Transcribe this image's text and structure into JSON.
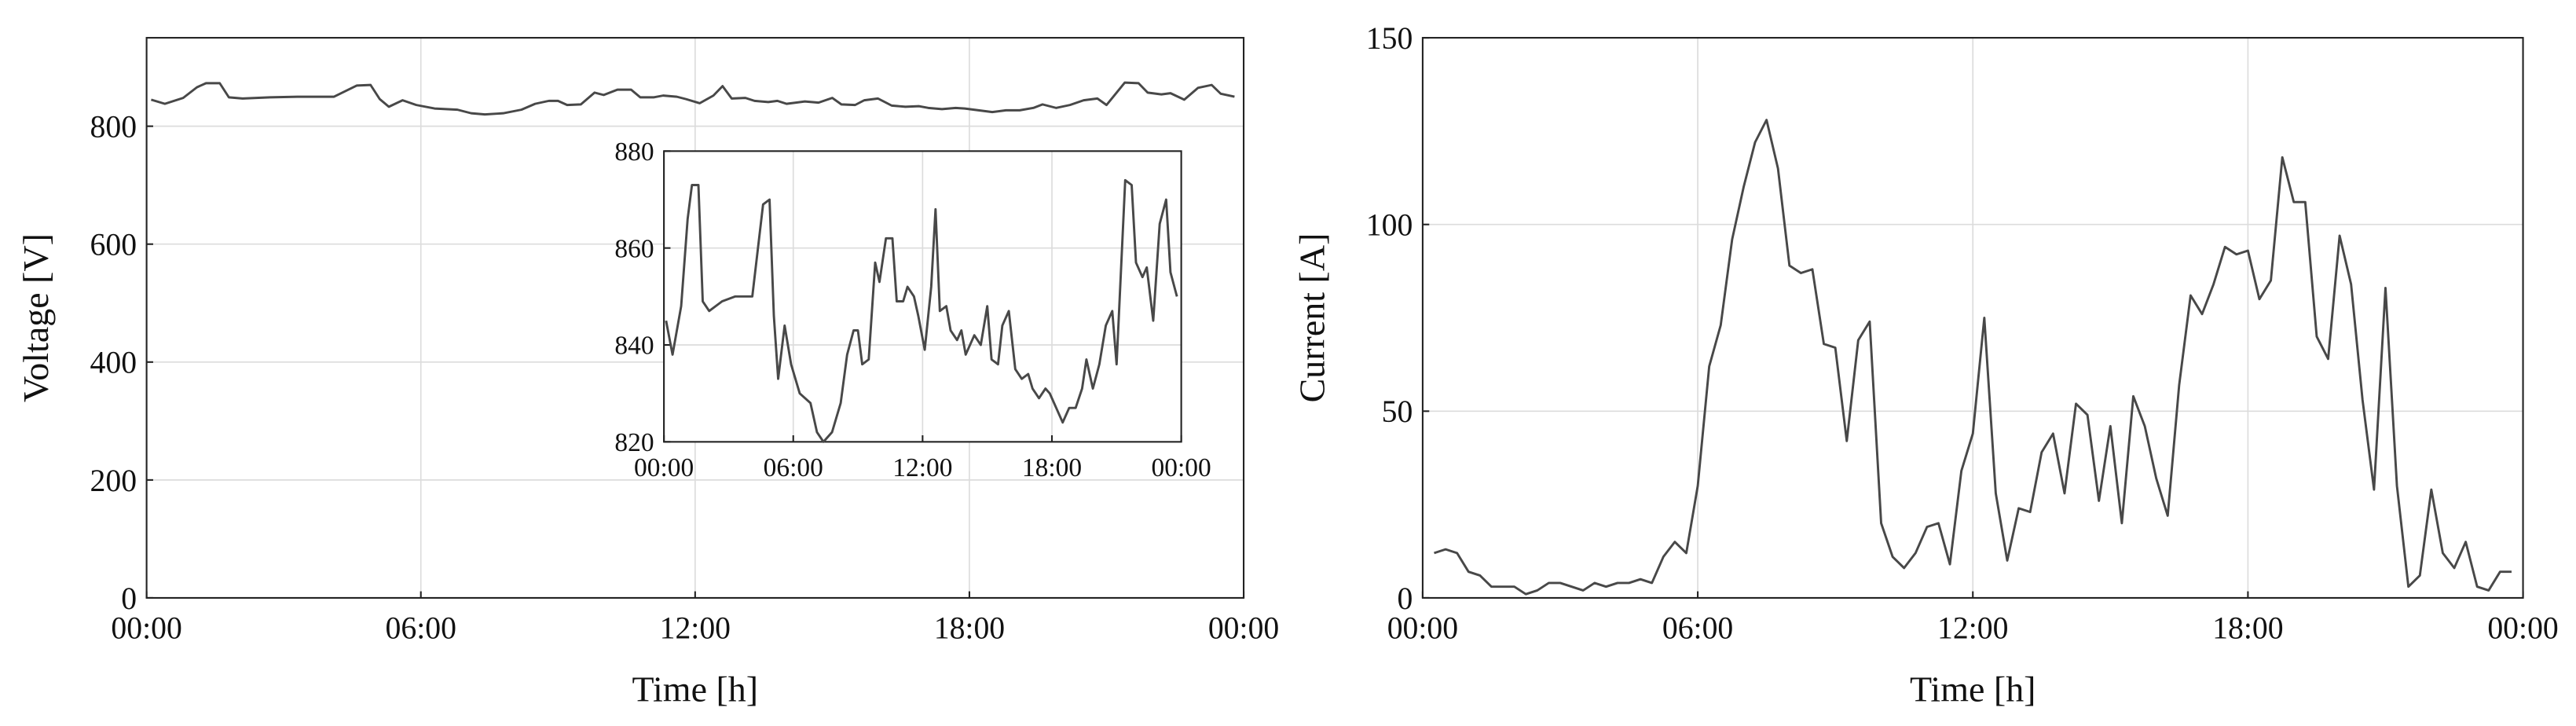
{
  "chart_data": [
    {
      "type": "line",
      "xlabel": "Time [h]",
      "ylabel": "Voltage [V]",
      "x": [
        0.1,
        0.4,
        0.8,
        1.1,
        1.3,
        1.6,
        1.8,
        2.1,
        2.7,
        3.3,
        4.1,
        4.6,
        4.9,
        5.1,
        5.3,
        5.6,
        5.9,
        6.3,
        6.8,
        7.1,
        7.4,
        7.8,
        8.2,
        8.5,
        8.8,
        9.0,
        9.2,
        9.5,
        9.8,
        10.0,
        10.3,
        10.6,
        10.8,
        11.1,
        11.3,
        11.6,
        11.8,
        12.1,
        12.4,
        12.6,
        12.8,
        13.1,
        13.3,
        13.6,
        13.8,
        14.0,
        14.4,
        14.7,
        15.0,
        15.2,
        15.5,
        15.7,
        16.0,
        16.3,
        16.6,
        16.9,
        17.1,
        17.4,
        17.7,
        17.9,
        18.2,
        18.5,
        18.8,
        19.1,
        19.4,
        19.6,
        19.9,
        20.2,
        20.5,
        20.8,
        21.0,
        21.4,
        21.7,
        21.9,
        22.2,
        22.4,
        22.7,
        23.0,
        23.3,
        23.5,
        23.8
      ],
      "series": [
        {
          "color": "#484848",
          "values": [
            845,
            838,
            848,
            866,
            873,
            873,
            849,
            847,
            849,
            850,
            850,
            869,
            870,
            846,
            833,
            844,
            836,
            830,
            828,
            822,
            820,
            822,
            828,
            838,
            843,
            843,
            836,
            837,
            857,
            853,
            862,
            862,
            849,
            849,
            852,
            850,
            846,
            839,
            852,
            868,
            847,
            848,
            843,
            841,
            843,
            838,
            842,
            840,
            848,
            837,
            836,
            844,
            847,
            835,
            833,
            834,
            831,
            829,
            831,
            830,
            827,
            824,
            827,
            827,
            831,
            837,
            831,
            836,
            844,
            847,
            836,
            874,
            873,
            857,
            854,
            856,
            845,
            865,
            870,
            855,
            850
          ]
        }
      ],
      "xlim": [
        0,
        24
      ],
      "xticks": [
        {
          "value": 0,
          "label": "00:00"
        },
        {
          "value": 6,
          "label": "06:00"
        },
        {
          "value": 12,
          "label": "12:00"
        },
        {
          "value": 18,
          "label": "18:00"
        },
        {
          "value": 24,
          "label": "00:00"
        }
      ],
      "ylim": [
        0,
        950
      ],
      "yticks": [
        0,
        200,
        400,
        600,
        800
      ],
      "grid": true,
      "inset": {
        "xlim": [
          0,
          24
        ],
        "xticks": [
          {
            "value": 0,
            "label": "00:00"
          },
          {
            "value": 6,
            "label": "06:00"
          },
          {
            "value": 12,
            "label": "12:00"
          },
          {
            "value": 18,
            "label": "18:00"
          },
          {
            "value": 24,
            "label": "00:00"
          }
        ],
        "ylim": [
          820,
          880
        ],
        "yticks": [
          820,
          840,
          860,
          880
        ],
        "grid": true
      }
    },
    {
      "type": "line",
      "xlabel": "Time [h]",
      "ylabel": "Current [A]",
      "x": [
        0.25,
        0.5,
        0.75,
        1,
        1.25,
        1.5,
        1.75,
        2,
        2.25,
        2.5,
        2.75,
        3,
        3.25,
        3.5,
        3.75,
        4,
        4.25,
        4.5,
        4.75,
        5,
        5.25,
        5.5,
        5.75,
        6,
        6.25,
        6.5,
        6.75,
        7,
        7.25,
        7.5,
        7.75,
        8,
        8.25,
        8.5,
        8.75,
        9,
        9.25,
        9.5,
        9.75,
        10,
        10.25,
        10.5,
        10.75,
        11,
        11.25,
        11.5,
        11.75,
        12,
        12.25,
        12.5,
        12.75,
        13,
        13.25,
        13.5,
        13.75,
        14,
        14.25,
        14.5,
        14.75,
        15,
        15.25,
        15.5,
        15.75,
        16,
        16.25,
        16.5,
        16.75,
        17,
        17.25,
        17.5,
        17.75,
        18,
        18.25,
        18.5,
        18.75,
        19,
        19.25,
        19.5,
        19.75,
        20,
        20.25,
        20.5,
        20.75,
        21,
        21.25,
        21.5,
        21.75,
        22,
        22.25,
        22.5,
        22.75,
        23,
        23.25,
        23.5,
        23.75
      ],
      "series": [
        {
          "color": "#484848",
          "values": [
            12,
            13,
            12,
            7,
            6,
            3,
            3,
            3,
            1,
            2,
            4,
            4,
            3,
            2,
            4,
            3,
            4,
            4,
            5,
            4,
            11,
            15,
            12,
            30,
            62,
            73,
            96,
            110,
            122,
            128,
            115,
            89,
            87,
            88,
            68,
            67,
            42,
            69,
            74,
            20,
            11,
            8,
            12,
            19,
            20,
            9,
            34,
            44,
            75,
            28,
            10,
            24,
            23,
            39,
            44,
            28,
            52,
            49,
            26,
            46,
            20,
            54,
            46,
            32,
            22,
            57,
            81,
            76,
            84,
            94,
            92,
            93,
            80,
            85,
            118,
            106,
            106,
            70,
            64,
            97,
            84,
            53,
            29,
            83,
            30,
            3,
            6,
            29,
            12,
            8,
            15,
            3,
            2,
            7,
            7
          ]
        }
      ],
      "xlim": [
        0,
        24
      ],
      "xticks": [
        {
          "value": 0,
          "label": "00:00"
        },
        {
          "value": 6,
          "label": "06:00"
        },
        {
          "value": 12,
          "label": "12:00"
        },
        {
          "value": 18,
          "label": "18:00"
        },
        {
          "value": 24,
          "label": "00:00"
        }
      ],
      "ylim": [
        0,
        150
      ],
      "yticks": [
        0,
        50,
        100,
        150
      ],
      "grid": true
    }
  ]
}
